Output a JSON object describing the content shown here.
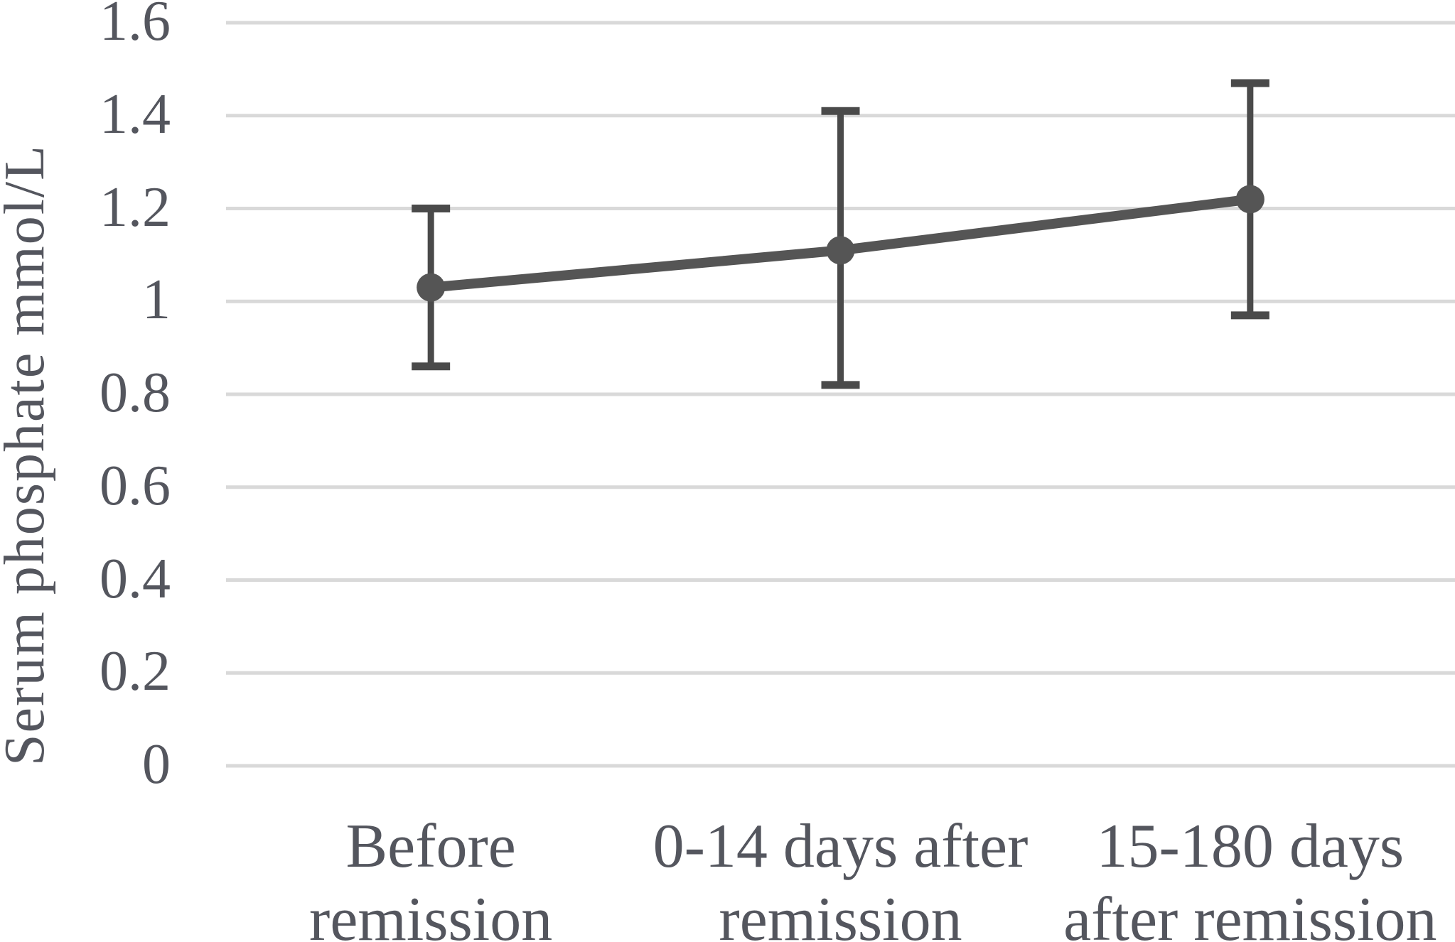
{
  "chart_data": {
    "type": "line",
    "title": "",
    "xlabel": "",
    "ylabel": "Serum phosphate mmol/L",
    "categories": [
      "Before remission",
      "0-14 days after remission",
      "15-180 days after remission"
    ],
    "category_label_lines": [
      [
        "Before",
        "remission"
      ],
      [
        "0-14 days after",
        "remission"
      ],
      [
        "15-180 days",
        "after remission"
      ]
    ],
    "series": [
      {
        "name": "Serum phosphate",
        "values": [
          1.03,
          1.11,
          1.22
        ],
        "error_upper": [
          1.2,
          1.41,
          1.47
        ],
        "error_lower": [
          0.86,
          0.82,
          0.97
        ]
      }
    ],
    "ylim": [
      0,
      1.6
    ],
    "ytick_step": 0.2,
    "ytick_labels": [
      "0",
      "0.2",
      "0.4",
      "0.6",
      "0.8",
      "1",
      "1.2",
      "1.4",
      "1.6"
    ],
    "grid": "horizontal",
    "legend": "none",
    "marker": "circle",
    "colors": {
      "series": "#555555",
      "error_bar": "#4a4a4a",
      "gridline": "#d9d9d9",
      "text": "#54565e",
      "background": "#ffffff"
    }
  }
}
